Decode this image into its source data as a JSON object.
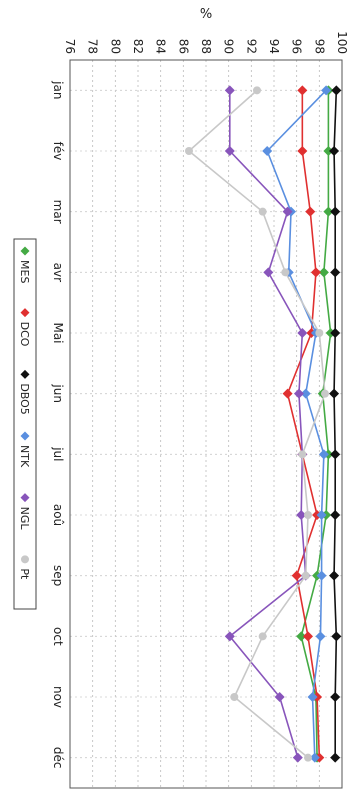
{
  "chart_data": {
    "type": "line",
    "title": "",
    "ylabel": "%",
    "xlabel": "",
    "ylim": [
      76,
      100
    ],
    "yticks": [
      "100",
      "98",
      "96",
      "94",
      "92",
      "90",
      "88",
      "86",
      "84",
      "82",
      "80",
      "78",
      "76"
    ],
    "categories": [
      "jan",
      "fév",
      "mar",
      "avr",
      "Mai",
      "jun",
      "jul",
      "aoû",
      "sep",
      "oct",
      "nov",
      "déc"
    ],
    "grid": true,
    "legend_position": "bottom",
    "series": [
      {
        "name": "MES",
        "color": "#44aa44",
        "marker": "diamond",
        "values": [
          98.8,
          98.8,
          98.8,
          98.4,
          99.0,
          98.3,
          98.8,
          98.6,
          97.8,
          96.4,
          97.7,
          97.8
        ]
      },
      {
        "name": "DCO",
        "color": "#e03030",
        "marker": "diamond",
        "values": [
          96.5,
          96.5,
          97.2,
          97.7,
          97.3,
          95.2,
          96.5,
          97.8,
          96.0,
          97.0,
          97.8,
          98.0
        ]
      },
      {
        "name": "DBO5",
        "color": "#111111",
        "marker": "diamond",
        "values": [
          99.5,
          99.3,
          99.4,
          99.4,
          99.4,
          99.3,
          99.4,
          99.4,
          99.3,
          99.5,
          99.4,
          99.4
        ]
      },
      {
        "name": "NTK",
        "color": "#5a8fe0",
        "marker": "diamond",
        "values": [
          98.6,
          93.4,
          95.5,
          95.3,
          97.7,
          96.8,
          98.4,
          98.2,
          98.2,
          98.1,
          97.4,
          97.6
        ]
      },
      {
        "name": "NGL",
        "color": "#8855bb",
        "marker": "diamond",
        "values": [
          90.1,
          90.1,
          95.2,
          93.5,
          96.5,
          96.2,
          96.5,
          96.4,
          96.8,
          90.1,
          94.5,
          96.1
        ]
      },
      {
        "name": "Pt",
        "color": "#c8c8c8",
        "marker": "circle",
        "values": [
          92.5,
          86.5,
          93.0,
          95.0,
          98.0,
          98.5,
          96.5,
          97.0,
          96.8,
          93.0,
          90.5,
          97.0
        ]
      }
    ]
  }
}
